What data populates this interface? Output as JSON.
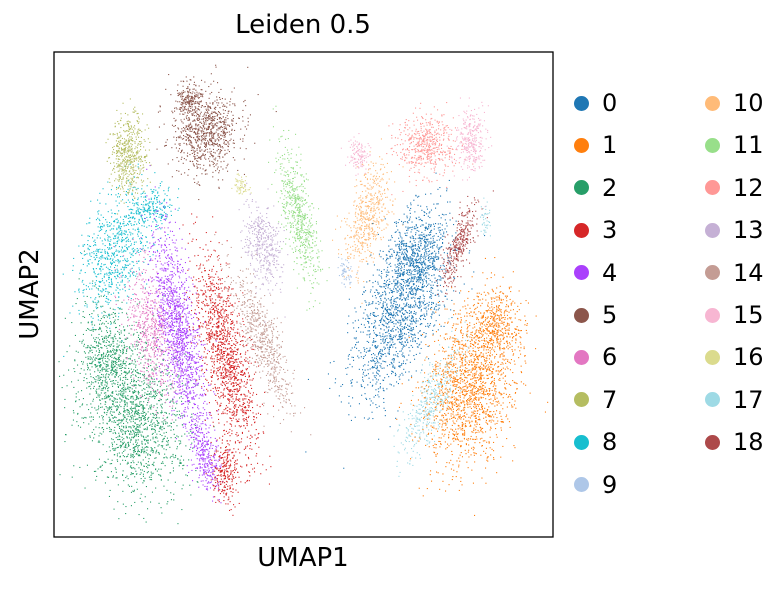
{
  "chart_data": {
    "type": "scatter",
    "title": "Leiden 0.5",
    "xlabel": "UMAP1",
    "ylabel": "UMAP2",
    "xticks": false,
    "yticks": false,
    "grid": false,
    "legend_position": "right",
    "legend_columns": 2,
    "clusters": [
      {
        "name": "0",
        "color": "#1f77b4"
      },
      {
        "name": "1",
        "color": "#ff7f0e"
      },
      {
        "name": "2",
        "color": "#279e68"
      },
      {
        "name": "3",
        "color": "#d62728"
      },
      {
        "name": "4",
        "color": "#aa40fc"
      },
      {
        "name": "5",
        "color": "#8c564b"
      },
      {
        "name": "6",
        "color": "#e377c2"
      },
      {
        "name": "7",
        "color": "#b5bd61"
      },
      {
        "name": "8",
        "color": "#17becf"
      },
      {
        "name": "9",
        "color": "#aec7e8"
      },
      {
        "name": "10",
        "color": "#ffbb78"
      },
      {
        "name": "11",
        "color": "#98df8a"
      },
      {
        "name": "12",
        "color": "#ff9896"
      },
      {
        "name": "13",
        "color": "#c5b0d5"
      },
      {
        "name": "14",
        "color": "#c49c94"
      },
      {
        "name": "15",
        "color": "#f7b6d2"
      },
      {
        "name": "16",
        "color": "#dbdb8d"
      },
      {
        "name": "17",
        "color": "#9edae5"
      },
      {
        "name": "18",
        "color": "#ad494a"
      }
    ]
  }
}
